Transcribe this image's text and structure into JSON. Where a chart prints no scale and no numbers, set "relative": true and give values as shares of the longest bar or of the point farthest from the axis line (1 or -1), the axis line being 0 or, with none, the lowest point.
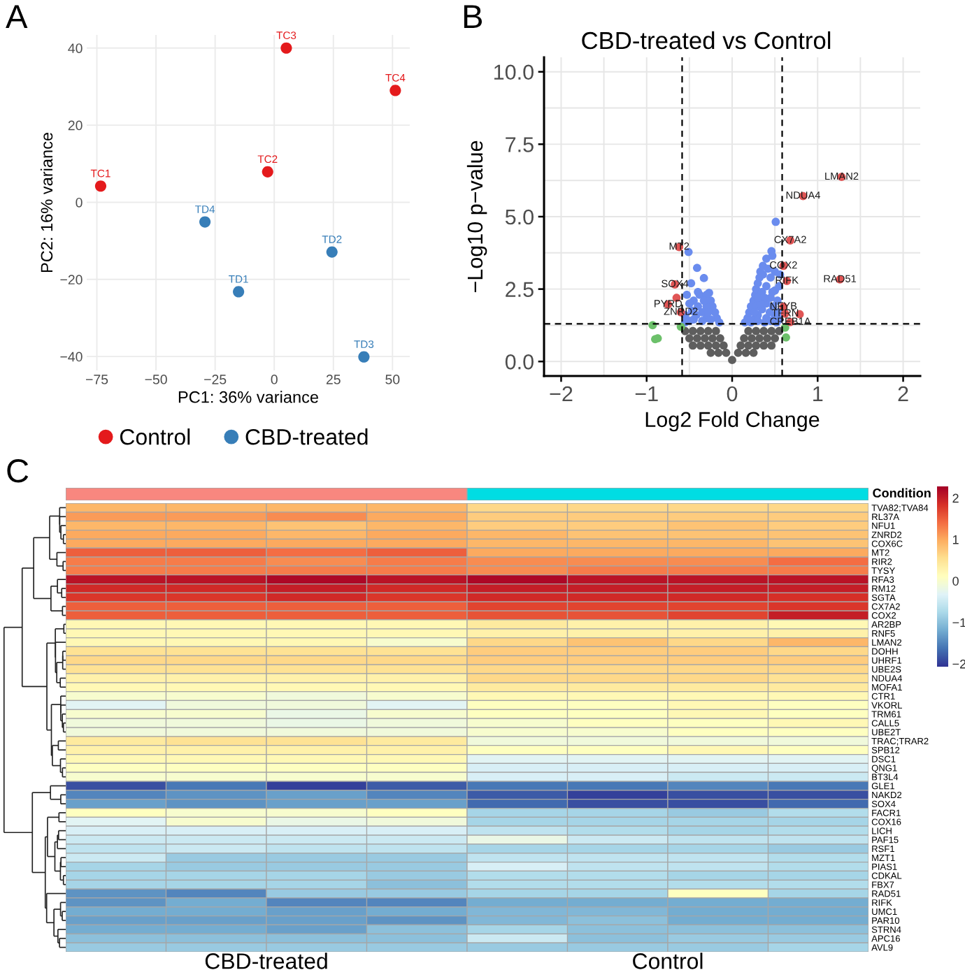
{
  "chart_data": [
    {
      "type": "scatter",
      "annotations": [
        "A"
      ],
      "xlabel": "PC1: 36% variance",
      "ylabel": "PC2: 16% variance",
      "xlim": [
        -79.3,
        57.3
      ],
      "ylim": [
        -43.6,
        43.4
      ],
      "xticks": [
        {
          "value": -75,
          "label": "−75"
        },
        {
          "value": -50,
          "label": "−50"
        },
        {
          "value": -25,
          "label": "−25"
        },
        0,
        25,
        50
      ],
      "yticks": [
        {
          "value": -40,
          "label": "−40"
        },
        {
          "value": -20,
          "label": "−20"
        },
        0,
        20,
        40
      ],
      "grid": true,
      "legend": "bottom",
      "marker": "circle",
      "series": [
        {
          "name": "Control",
          "color": "#e41a1c",
          "x": [
            -73.4,
            -2.8,
            5.1,
            51.2
          ],
          "values": [
            4.2,
            7.9,
            40.0,
            29.0
          ],
          "value_labels": [
            "TC1",
            "TC2",
            "TC3",
            "TC4"
          ]
        },
        {
          "name": "CBD-treated",
          "color": "#377eb8",
          "x": [
            -15.1,
            24.4,
            37.9,
            -29.3
          ],
          "values": [
            -23.2,
            -12.9,
            -40.1,
            -5.1
          ],
          "value_labels": [
            "TD1",
            "TD2",
            "TD3",
            "TD4"
          ]
        }
      ]
    },
    {
      "type": "scatter",
      "annotations": [
        "B"
      ],
      "title": "CBD-treated vs Control",
      "xlabel": "Log2 Fold Change",
      "ylabel": "−Log10 p−value",
      "xlim": [
        -2.2,
        2.2
      ],
      "ylim": [
        -0.5,
        10.5
      ],
      "xticks": [
        {
          "value": -2,
          "label": "−2"
        },
        {
          "value": -1.5,
          "label": null
        },
        {
          "value": -1,
          "label": "−1"
        },
        {
          "value": -0.5,
          "label": null
        },
        0,
        {
          "value": 0.5,
          "label": null
        },
        1,
        {
          "value": 1.5,
          "label": null
        },
        2
      ],
      "yticks": [
        {
          "value": 0,
          "label": "0.0"
        },
        {
          "value": 1.25,
          "label": null
        },
        2.5,
        {
          "value": 3.75,
          "label": null
        },
        {
          "value": 5,
          "label": "5.0"
        },
        {
          "value": 6.25,
          "label": null
        },
        7.5,
        {
          "value": 8.75,
          "label": null
        },
        {
          "value": 10,
          "label": "10.0"
        }
      ],
      "grid": true,
      "marker": "circle",
      "ref_lines": [
        {
          "axis": "x",
          "value": -0.585,
          "line_style": "dashed",
          "color": "#000000"
        },
        {
          "axis": "x",
          "value": 0.585,
          "line_style": "dashed",
          "color": "#000000"
        },
        {
          "axis": "y",
          "value": 1.3,
          "line_style": "dashed",
          "color": "#000000"
        }
      ],
      "series": [
        {
          "color": "#5e5e5e",
          "x": [
            0,
            0.07,
            -0.07,
            0.16,
            -0.16,
            0.25,
            -0.25,
            0.1,
            -0.1,
            0.19,
            -0.19,
            0.28,
            -0.28,
            0.37,
            -0.37,
            0.46,
            -0.46,
            0.14,
            -0.14,
            0.23,
            -0.23,
            0.32,
            -0.32,
            0.41,
            -0.41,
            0.5,
            -0.5,
            0.19,
            -0.19,
            0.28,
            -0.28,
            0.37,
            -0.37,
            0.46,
            -0.46,
            0.55,
            -0.55
          ],
          "values": [
            0.05,
            0.3,
            0.3,
            0.3,
            0.3,
            0.3,
            0.3,
            0.55,
            0.55,
            0.55,
            0.55,
            0.55,
            0.55,
            0.55,
            0.55,
            0.55,
            0.55,
            0.8,
            0.8,
            0.8,
            0.8,
            0.8,
            0.8,
            0.8,
            0.8,
            0.8,
            0.8,
            1.05,
            1.05,
            1.05,
            1.05,
            1.05,
            1.05,
            1.05,
            1.05,
            1.05,
            1.05
          ]
        },
        {
          "color": "#6a8cee",
          "x": [
            0.15,
            0.18,
            0.2,
            0.22,
            0.25,
            0.27,
            0.28,
            0.3,
            0.32,
            0.33,
            0.36,
            0.4,
            0.46,
            0.47,
            0.51,
            0.25,
            0.3,
            0.35,
            0.4,
            0.45,
            0.5,
            0.55,
            0.3,
            0.4,
            0.5,
            0.55,
            0.35,
            0.4,
            0.45,
            0.5,
            0.42,
            0.38,
            0.48,
            0.53,
            0.28,
            0.33,
            0.45,
            0.52,
            0.38,
            0.22,
            0.56,
            0.47,
            0.44,
            0.36,
            0.3,
            0.26,
            0.54,
            -0.15,
            -0.18,
            -0.2,
            -0.23,
            -0.25,
            -0.27,
            -0.33,
            -0.41,
            -0.51,
            -0.3,
            -0.35,
            -0.4,
            -0.45,
            -0.5,
            -0.55,
            -0.45,
            -0.35,
            -0.25,
            -0.3,
            -0.38,
            -0.3,
            -0.48,
            -0.42,
            -0.5,
            -0.55,
            -0.28,
            -0.47,
            -0.53,
            -0.33,
            -0.4
          ],
          "values": [
            1.35,
            1.5,
            1.7,
            1.9,
            2.1,
            2.3,
            2.5,
            2.7,
            2.9,
            3.1,
            3.3,
            3.55,
            3.81,
            3.65,
            4.82,
            1.45,
            1.6,
            1.8,
            2.0,
            2.2,
            2.45,
            2.6,
            1.4,
            1.5,
            1.6,
            1.45,
            2.4,
            2.6,
            2.9,
            3.1,
            3.2,
            2.2,
            1.9,
            2.1,
            1.9,
            2.0,
            1.4,
            1.35,
            1.35,
            1.35,
            3.0,
            2.4,
            1.7,
            3.0,
            2.2,
            1.7,
            1.7,
            1.35,
            1.5,
            1.7,
            1.9,
            2.1,
            2.37,
            2.88,
            3.23,
            3.78,
            1.5,
            1.7,
            1.9,
            2.1,
            2.0,
            1.6,
            1.45,
            1.4,
            1.45,
            1.9,
            2.3,
            2.3,
            2.7,
            1.6,
            1.4,
            1.35,
            1.7,
            1.75,
            2.3,
            2.1,
            2.4
          ]
        },
        {
          "color": "#6cc06a",
          "x": [
            -0.93,
            -0.87,
            -0.9,
            -0.6,
            0.62,
            0.63
          ],
          "values": [
            1.25,
            0.8,
            0.77,
            1.2,
            1.17,
            0.83
          ]
        },
        {
          "color": "#e05555",
          "x": [
            1.28,
            0.83,
            0.68,
            0.6,
            0.64,
            1.26,
            -0.62,
            -0.67,
            -0.65,
            -0.75,
            -0.6,
            0.6,
            0.62,
            0.79,
            0.68
          ],
          "values": [
            6.37,
            5.71,
            4.18,
            3.3,
            2.78,
            2.83,
            3.95,
            2.66,
            2.2,
            1.97,
            1.7,
            1.89,
            1.65,
            1.63,
            1.36
          ],
          "value_labels": [
            "LMAN2",
            "NDUA4",
            "CX7A2",
            "COX2",
            "RIFK",
            "RAD51",
            "MT2",
            "SOX4",
            null,
            "PYRD",
            "ZNRD2",
            "NFYB",
            "TFRN",
            null,
            "CREB1A"
          ]
        }
      ]
    },
    {
      "type": "heatmap",
      "annotations": [
        "C"
      ],
      "categories": [
        null,
        null,
        null,
        null,
        null,
        null,
        null,
        null
      ],
      "y_categories": [
        "TVA82;TVA84",
        "RL37A",
        "NFU1",
        "ZNRD2",
        "COX6C",
        "MT2",
        "RIR2",
        "TYSY",
        "RFA3",
        "RM12",
        "SGTA",
        "CX7A2",
        "COX2",
        "AR2BP",
        "RNF5",
        "LMAN2",
        "DOHH",
        "UHRF1",
        "UBE2S",
        "NDUA4",
        "MOFA1",
        "CTR1",
        "VKORL",
        "TRM61",
        "CALL5",
        "UBE2T",
        "TRAC;TRAR2",
        "SPB12",
        "DSC1",
        "QNG1",
        "BT3L4",
        "GLE1",
        "NAKD2",
        "SOX4",
        "FACR1",
        "COX16",
        "LICH",
        "PAF15",
        "RSF1",
        "MZT1",
        "PIAS1",
        "CDKAL",
        "FBX7",
        "RAD51",
        "RIFK",
        "UMC1",
        "PAR10",
        "STRN4",
        "APC16",
        "AVL9"
      ],
      "cells": [
        [
          0.9,
          0.9,
          0.9,
          0.9,
          0.6,
          0.6,
          0.6,
          0.6
        ],
        [
          1.1,
          1.1,
          1.2,
          1.0,
          0.7,
          0.7,
          0.7,
          0.7
        ],
        [
          0.9,
          0.9,
          0.8,
          0.9,
          0.7,
          0.7,
          0.8,
          0.7
        ],
        [
          1.0,
          1.0,
          0.9,
          1.0,
          0.9,
          0.8,
          0.8,
          0.8
        ],
        [
          1.0,
          1.0,
          1.0,
          1.0,
          0.9,
          0.9,
          0.9,
          0.8
        ],
        [
          1.5,
          1.5,
          1.4,
          1.5,
          1.0,
          1.0,
          1.0,
          1.0
        ],
        [
          1.3,
          1.3,
          1.2,
          1.3,
          1.2,
          1.2,
          1.2,
          1.4
        ],
        [
          1.3,
          1.3,
          1.3,
          1.3,
          1.2,
          1.3,
          1.3,
          1.3
        ],
        [
          2.1,
          2.1,
          2.2,
          2.1,
          2.2,
          2.1,
          2.1,
          2.1
        ],
        [
          1.9,
          1.9,
          2.0,
          1.9,
          2.0,
          2.0,
          2.0,
          2.0
        ],
        [
          1.8,
          1.8,
          1.9,
          1.8,
          1.9,
          1.9,
          1.9,
          1.85
        ],
        [
          1.5,
          1.5,
          1.5,
          1.5,
          1.7,
          1.7,
          1.7,
          1.8
        ],
        [
          1.5,
          1.5,
          1.5,
          1.5,
          1.6,
          1.6,
          1.7,
          2.0
        ],
        [
          0.2,
          0.2,
          0.2,
          0.2,
          0.4,
          0.3,
          0.3,
          0.2
        ],
        [
          0.2,
          0.2,
          0.2,
          0.2,
          0.3,
          0.3,
          0.3,
          0.3
        ],
        [
          0.2,
          0.2,
          0.2,
          0.0,
          0.6,
          0.8,
          0.6,
          0.9
        ],
        [
          0.5,
          0.5,
          0.5,
          0.5,
          0.7,
          0.7,
          0.7,
          0.6
        ],
        [
          0.6,
          0.6,
          0.6,
          0.6,
          0.7,
          0.7,
          0.7,
          0.7
        ],
        [
          0.5,
          0.5,
          0.5,
          0.5,
          0.6,
          0.6,
          0.6,
          0.6
        ],
        [
          0.3,
          0.3,
          0.3,
          0.3,
          0.6,
          0.6,
          0.6,
          0.5
        ],
        [
          0.2,
          0.2,
          0.2,
          0.2,
          0.4,
          0.4,
          0.4,
          0.4
        ],
        [
          0.0,
          0.0,
          -0.1,
          0.0,
          0.2,
          0.2,
          0.2,
          0.2
        ],
        [
          -0.3,
          -0.1,
          -0.1,
          -0.3,
          0.1,
          0.1,
          0.2,
          0.1
        ],
        [
          0.0,
          0.0,
          -0.2,
          0.0,
          0.1,
          0.1,
          0.2,
          0.1
        ],
        [
          -0.1,
          -0.1,
          -0.2,
          -0.1,
          0.0,
          0.1,
          0.1,
          0.2
        ],
        [
          -0.1,
          -0.1,
          -0.1,
          -0.1,
          0.0,
          0.0,
          0.1,
          0.1
        ],
        [
          0.4,
          0.5,
          0.5,
          0.4,
          -0.1,
          -0.1,
          -0.1,
          -0.1
        ],
        [
          0.3,
          0.3,
          0.3,
          0.3,
          0.1,
          0.1,
          0.2,
          0.1
        ],
        [
          0.2,
          0.2,
          0.2,
          0.2,
          -0.3,
          -0.3,
          -0.3,
          -0.3
        ],
        [
          0.1,
          0.1,
          0.1,
          0.1,
          -0.4,
          -0.4,
          -0.4,
          -0.4
        ],
        [
          0.0,
          0.0,
          0.0,
          0.0,
          -0.4,
          -0.4,
          -0.5,
          -0.5
        ],
        [
          -1.9,
          -1.6,
          -2.0,
          -1.8,
          -1.6,
          -1.6,
          -1.5,
          -1.6
        ],
        [
          -1.5,
          -1.4,
          -1.3,
          -1.5,
          -1.8,
          -2.0,
          -1.9,
          -1.9
        ],
        [
          -1.3,
          -1.4,
          -1.3,
          -1.3,
          -1.7,
          -1.9,
          -1.9,
          -1.7
        ],
        [
          0.1,
          0.0,
          0.0,
          0.1,
          -0.8,
          -0.8,
          -0.9,
          -0.7
        ],
        [
          -0.3,
          0.0,
          -0.2,
          -0.1,
          -0.8,
          -0.8,
          -0.8,
          -0.8
        ],
        [
          -0.4,
          -0.4,
          -0.4,
          -0.4,
          -0.6,
          -0.7,
          -0.8,
          -0.7
        ],
        [
          -0.5,
          -0.5,
          -0.5,
          -0.5,
          -0.2,
          -0.5,
          -0.6,
          -0.6
        ],
        [
          -0.6,
          -0.5,
          -0.6,
          -0.6,
          -0.8,
          -0.8,
          -0.8,
          -0.9
        ],
        [
          -0.5,
          -0.9,
          -0.9,
          -0.9,
          -0.6,
          -0.6,
          -0.6,
          -0.7
        ],
        [
          -0.8,
          -0.9,
          -0.9,
          -0.9,
          -0.4,
          -0.6,
          -0.6,
          -0.7
        ],
        [
          -0.8,
          -0.8,
          -0.8,
          -0.9,
          -0.7,
          -0.7,
          -0.8,
          -0.8
        ],
        [
          -0.8,
          -0.8,
          -0.8,
          -1.0,
          -0.7,
          -0.7,
          -0.7,
          -0.7
        ],
        [
          -1.4,
          -1.5,
          -0.9,
          -0.9,
          -0.8,
          -0.8,
          0.1,
          -0.8
        ],
        [
          -1.4,
          -1.2,
          -1.5,
          -1.5,
          -1.2,
          -1.2,
          -1.2,
          -1.2
        ],
        [
          -1.2,
          -1.2,
          -1.3,
          -1.2,
          -1.1,
          -1.1,
          -1.2,
          -1.2
        ],
        [
          -1.3,
          -1.3,
          -1.3,
          -1.4,
          -1.1,
          -1.0,
          -1.2,
          -1.2
        ],
        [
          -1.2,
          -1.2,
          -1.3,
          -1.0,
          -0.8,
          -1.0,
          -1.0,
          -1.0
        ],
        [
          -1.0,
          -1.0,
          -1.0,
          -1.0,
          -0.5,
          -1.0,
          -0.9,
          -0.9
        ],
        [
          -0.9,
          -0.9,
          -0.9,
          -0.9,
          -0.9,
          -0.9,
          -0.9,
          -0.8
        ]
      ],
      "clim": [
        -2.07,
        2.28
      ],
      "cticks": [
        {
          "value": -2,
          "label": "−2"
        },
        {
          "value": -1,
          "label": "−1"
        },
        0,
        1,
        2
      ]
    },
    {
      "type": "bar",
      "relative": true,
      "ylabel": "Condition",
      "categories": [
        "CBD-treated",
        "Control"
      ],
      "values": [
        1,
        1
      ],
      "colors": [
        "#f8877f",
        "#00dde3"
      ]
    }
  ]
}
